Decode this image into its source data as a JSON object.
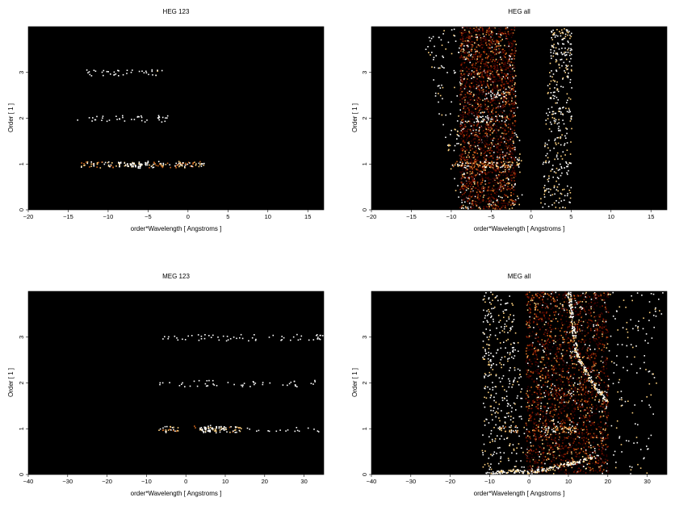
{
  "chart_data": [
    {
      "type": "heatmap",
      "title": "HEG 123",
      "xlabel": "order*Wavelength [ Angstroms ]",
      "ylabel": "Order [ 1 ]",
      "xlim": [
        -20,
        17
      ],
      "ylim": [
        0,
        4
      ],
      "xticks": [
        "−20",
        "−15",
        "−10",
        "−5",
        "0",
        "5",
        "10",
        "15"
      ],
      "xtick_values": [
        -20,
        -15,
        -10,
        -5,
        0,
        5,
        10,
        15
      ],
      "yticks": [
        "0",
        "1",
        "2",
        "3"
      ],
      "ytick_values": [
        0,
        1,
        2,
        3
      ],
      "background": "#000000",
      "colormap": [
        "#3a0000",
        "#8b1a00",
        "#d2691e",
        "#ffd27f",
        "#ffffff"
      ],
      "features": [
        {
          "shape": "band",
          "y": 1,
          "x": [
            -13.5,
            2
          ],
          "peak_x": [
            -9,
            -5
          ],
          "density": 0.85
        },
        {
          "shape": "band",
          "y": 2,
          "x": [
            -14,
            -2.5
          ],
          "density": 0.3
        },
        {
          "shape": "band",
          "y": 3,
          "x": [
            -13,
            -3
          ],
          "peak_x": [
            -5,
            -3.5
          ],
          "density": 0.3
        }
      ]
    },
    {
      "type": "heatmap",
      "title": "HEG all",
      "xlabel": "order*Wavelength [ Angstroms ]",
      "ylabel": "Order [ 1 ]",
      "xlim": [
        -20,
        17
      ],
      "ylim": [
        0,
        4
      ],
      "xticks": [
        "−20",
        "−15",
        "−10",
        "−5",
        "0",
        "5",
        "10",
        "15"
      ],
      "xtick_values": [
        -20,
        -15,
        -10,
        -5,
        0,
        5,
        10,
        15
      ],
      "yticks": [
        "0",
        "1",
        "2",
        "3"
      ],
      "ytick_values": [
        0,
        1,
        2,
        3
      ],
      "background": "#000000",
      "colormap": [
        "#3a0000",
        "#8b1a00",
        "#d2691e",
        "#ffd27f",
        "#ffffff"
      ],
      "features": [
        {
          "shape": "wedge",
          "x_at_top": [
            -14,
            -2
          ],
          "x_at_bottom": [
            -9,
            -1
          ],
          "density": 0.45
        },
        {
          "shape": "wedge",
          "x_at_top": [
            2.5,
            5
          ],
          "x_at_bottom": [
            1,
            5
          ],
          "density": 0.5
        },
        {
          "shape": "dense_region",
          "x": [
            -9,
            -2
          ],
          "y": [
            0,
            4
          ],
          "density": 0.9
        },
        {
          "shape": "band",
          "y": 1,
          "x": [
            -10,
            -1.5
          ],
          "density": 1.0
        },
        {
          "shape": "band",
          "y": 2,
          "x": [
            -7,
            -3
          ],
          "density": 0.6
        },
        {
          "shape": "band",
          "y": 2.5,
          "x": [
            -6,
            -3
          ],
          "density": 0.6
        }
      ]
    },
    {
      "type": "heatmap",
      "title": "MEG 123",
      "xlabel": "order*Wavelength [ Angstroms ]",
      "ylabel": "Order [ 1 ]",
      "xlim": [
        -40,
        35
      ],
      "ylim": [
        0,
        4
      ],
      "xticks": [
        "−40",
        "−30",
        "−20",
        "−10",
        "0",
        "10",
        "20",
        "30"
      ],
      "xtick_values": [
        -40,
        -30,
        -20,
        -10,
        0,
        10,
        20,
        30
      ],
      "yticks": [
        "0",
        "1",
        "2",
        "3"
      ],
      "ytick_values": [
        0,
        1,
        2,
        3
      ],
      "background": "#000000",
      "colormap": [
        "#3a0000",
        "#8b1a00",
        "#d2691e",
        "#ffd27f",
        "#ffffff"
      ],
      "features": [
        {
          "shape": "band",
          "y": 1,
          "x": [
            -7,
            -2
          ],
          "density": 0.9
        },
        {
          "shape": "band",
          "y": 1,
          "x": [
            2,
            14
          ],
          "peak_x": [
            3,
            10
          ],
          "density": 0.9
        },
        {
          "shape": "band",
          "y": 1,
          "x": [
            15,
            35
          ],
          "density": 0.15
        },
        {
          "shape": "band",
          "y": 2,
          "x": [
            -7,
            35
          ],
          "density": 0.2
        },
        {
          "shape": "band",
          "y": 3,
          "x": [
            -6,
            35
          ],
          "density": 0.25
        }
      ]
    },
    {
      "type": "heatmap",
      "title": "MEG all",
      "xlabel": "order*Wavelength [ Angstroms ]",
      "ylabel": "Order [ 1 ]",
      "xlim": [
        -40,
        35
      ],
      "ylim": [
        0,
        4
      ],
      "xticks": [
        "−40",
        "−30",
        "−20",
        "−10",
        "0",
        "10",
        "20",
        "30"
      ],
      "xtick_values": [
        -40,
        -30,
        -20,
        -10,
        0,
        10,
        20,
        30
      ],
      "yticks": [
        "0",
        "1",
        "2",
        "3"
      ],
      "ytick_values": [
        0,
        1,
        2,
        3
      ],
      "background": "#000000",
      "colormap": [
        "#3a0000",
        "#8b1a00",
        "#d2691e",
        "#ffd27f",
        "#ffffff"
      ],
      "features": [
        {
          "shape": "wedge",
          "x_at_top": [
            -12,
            -4
          ],
          "x_at_bottom": [
            -12,
            0
          ],
          "density": 0.5
        },
        {
          "shape": "wedge",
          "x_at_top": [
            3,
            35
          ],
          "x_at_bottom": [
            0,
            30
          ],
          "density": 0.45
        },
        {
          "shape": "dense_region",
          "x": [
            -1,
            20
          ],
          "y": [
            0,
            4
          ],
          "density": 0.55
        },
        {
          "shape": "band",
          "y": 1,
          "x": [
            -8,
            -3
          ],
          "density": 0.9
        },
        {
          "shape": "band",
          "y": 1,
          "x": [
            2,
            12
          ],
          "density": 1.0
        },
        {
          "shape": "curve",
          "points": [
            [
              10,
              4
            ],
            [
              12,
              2.6
            ],
            [
              16,
              2
            ],
            [
              20,
              1.6
            ]
          ],
          "density": 1.0
        },
        {
          "shape": "curve",
          "points": [
            [
              -11,
              0
            ],
            [
              -5,
              0.1
            ],
            [
              0,
              0.05
            ],
            [
              8,
              0.2
            ],
            [
              17,
              0.4
            ]
          ],
          "density": 0.9
        }
      ]
    }
  ]
}
